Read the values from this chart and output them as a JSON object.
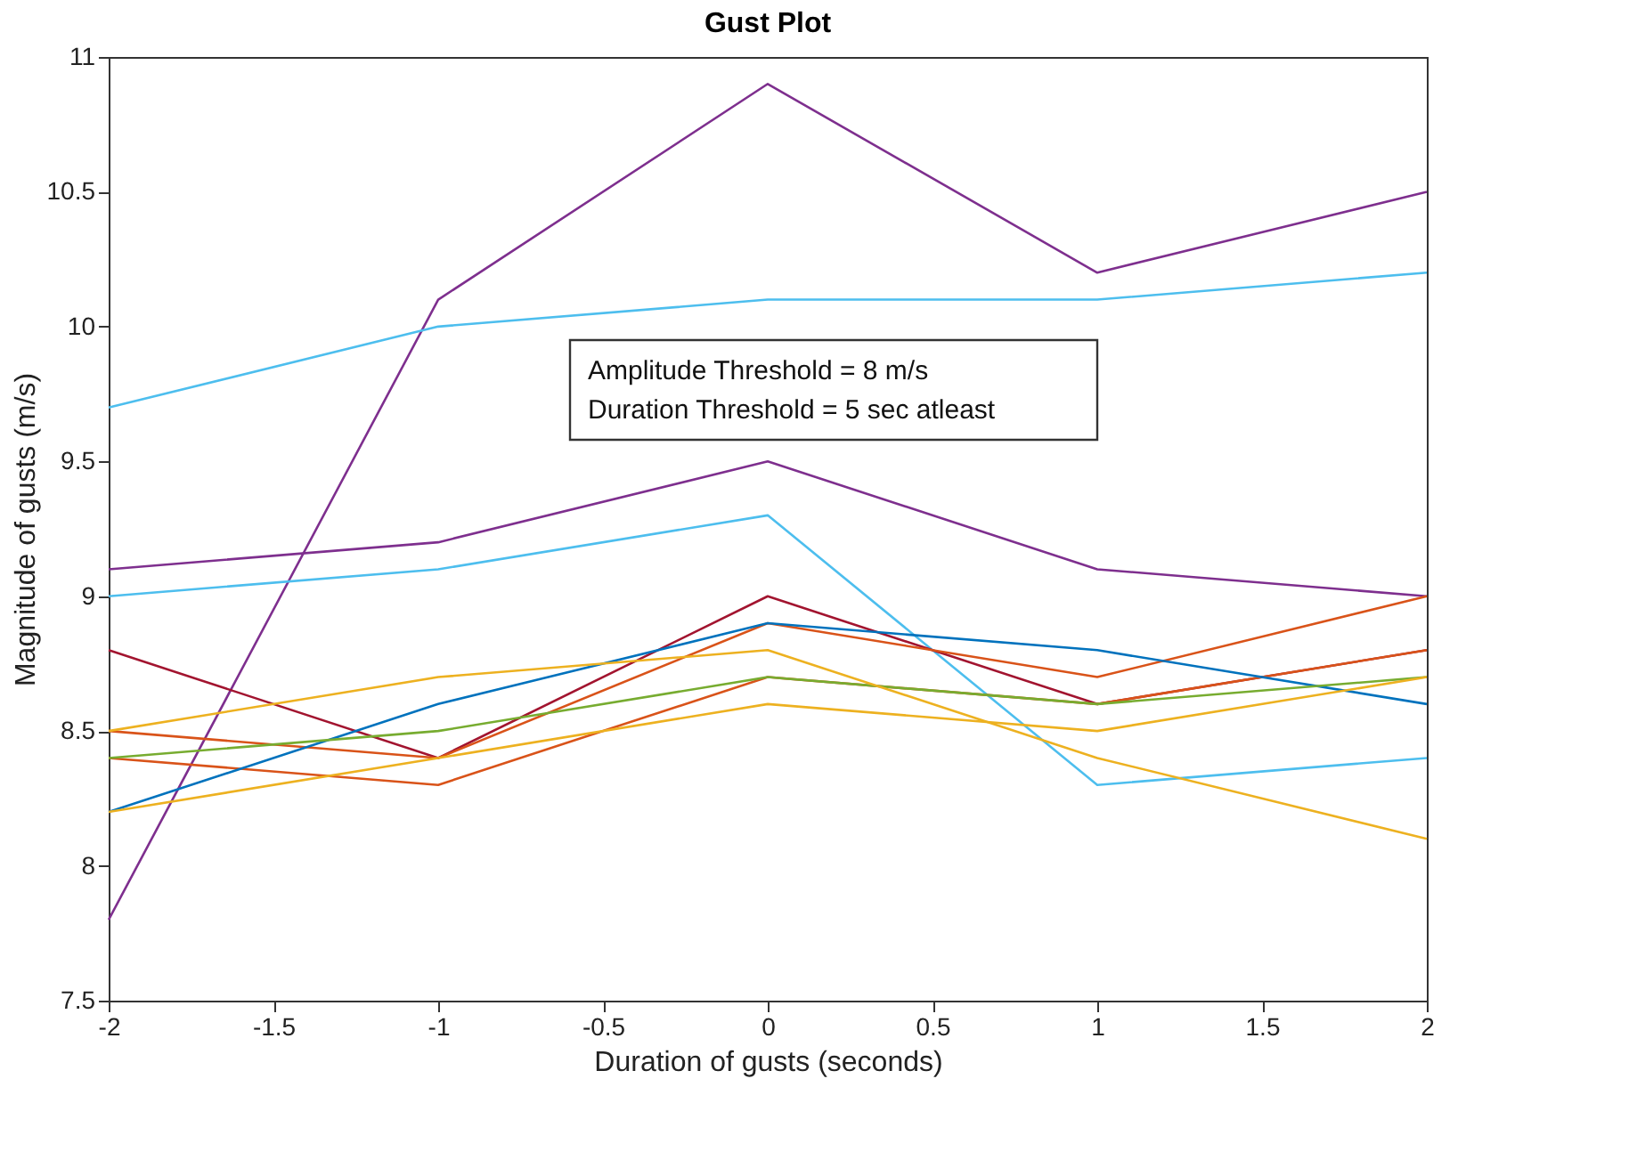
{
  "chart_data": {
    "type": "line",
    "title": "Gust Plot",
    "xlabel": "Duration of gusts (seconds)",
    "ylabel": "Magnitude of gusts (m/s)",
    "x": [
      -2,
      -1,
      0,
      1,
      2
    ],
    "series": [
      {
        "color": "#7e2f8e",
        "values": [
          7.8,
          10.1,
          10.9,
          10.2,
          10.5
        ]
      },
      {
        "color": "#4dbeee",
        "values": [
          9.7,
          10.0,
          10.1,
          10.1,
          10.2
        ]
      },
      {
        "color": "#7e2f8e",
        "values": [
          9.1,
          9.2,
          9.5,
          9.1,
          9.0
        ]
      },
      {
        "color": "#4dbeee",
        "values": [
          9.0,
          9.1,
          9.3,
          8.3,
          8.4
        ]
      },
      {
        "color": "#a2142f",
        "values": [
          8.8,
          8.4,
          9.0,
          8.6,
          8.8
        ]
      },
      {
        "color": "#d95319",
        "values": [
          8.5,
          8.4,
          8.9,
          8.7,
          9.0
        ]
      },
      {
        "color": "#d95319",
        "values": [
          8.4,
          8.3,
          8.7,
          8.6,
          8.8
        ]
      },
      {
        "color": "#0072bd",
        "values": [
          8.2,
          8.6,
          8.9,
          8.8,
          8.6
        ]
      },
      {
        "color": "#77ac30",
        "values": [
          8.4,
          8.5,
          8.7,
          8.6,
          8.7
        ]
      },
      {
        "color": "#edb120",
        "values": [
          8.5,
          8.7,
          8.8,
          8.4,
          8.1
        ]
      },
      {
        "color": "#edb120",
        "values": [
          8.2,
          8.4,
          8.6,
          8.5,
          8.7
        ]
      }
    ],
    "xlim": [
      -2,
      2
    ],
    "xticks": [
      -2,
      -1.5,
      -1,
      -0.5,
      0,
      0.5,
      1,
      1.5,
      2
    ],
    "ylim": [
      7.5,
      11
    ],
    "yticks": [
      7.5,
      8,
      8.5,
      9,
      9.5,
      10,
      10.5,
      11
    ],
    "annotations": [
      "Amplitude Threshold = 8 m/s",
      "Duration Threshold = 5 sec atleast"
    ],
    "grid": false,
    "marker": "none",
    "line_style": "solid"
  }
}
